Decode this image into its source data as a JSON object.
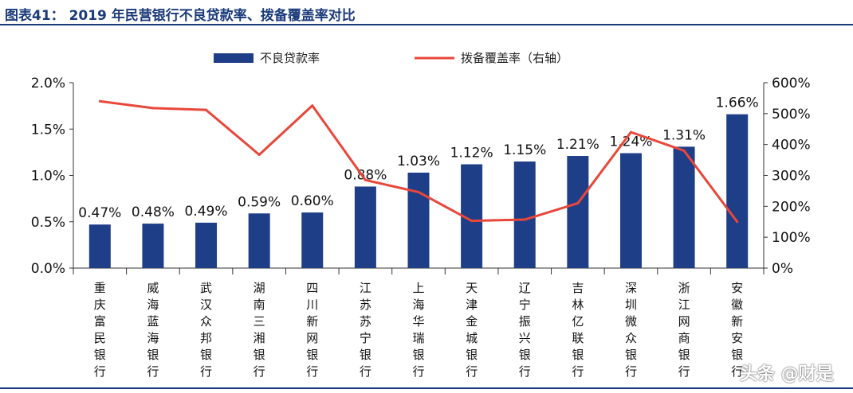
{
  "header": {
    "title": "图表41： 2019 年民营银行不良贷款率、拨备覆盖率对比"
  },
  "watermark": "头条 @财是",
  "colors": {
    "bar": "#1f3e88",
    "line": "#e8473a",
    "title": "#1a3a7a"
  },
  "chart_data": {
    "type": "bar+line",
    "categories": [
      "重庆富民银行",
      "威海蓝海银行",
      "武汉众邦银行",
      "湖南三湘银行",
      "四川新网银行",
      "江苏苏宁银行",
      "上海华瑞银行",
      "天津金城银行",
      "辽宁振兴银行",
      "吉林亿联银行",
      "深圳微众银行",
      "浙江网商银行",
      "安徽新安银行"
    ],
    "series": [
      {
        "name": "不良贷款率",
        "type": "bar",
        "axis": "left",
        "values": [
          0.47,
          0.48,
          0.49,
          0.59,
          0.6,
          0.88,
          1.03,
          1.12,
          1.15,
          1.21,
          1.24,
          1.31,
          1.66
        ],
        "labels": [
          "0.47%",
          "0.48%",
          "0.49%",
          "0.59%",
          "0.60%",
          "0.88%",
          "1.03%",
          "1.12%",
          "1.15%",
          "1.21%",
          "1.24%",
          "1.31%",
          "1.66%"
        ]
      },
      {
        "name": "拨备覆盖率（右轴）",
        "type": "line",
        "axis": "right",
        "values": [
          540,
          518,
          512,
          367,
          526,
          285,
          246,
          153,
          157,
          210,
          440,
          380,
          150
        ]
      }
    ],
    "y_left": {
      "min": 0,
      "max": 2.0,
      "ticks": [
        "0.0%",
        "0.5%",
        "1.0%",
        "1.5%",
        "2.0%"
      ]
    },
    "y_right": {
      "min": 0,
      "max": 600,
      "ticks": [
        "0%",
        "100%",
        "200%",
        "300%",
        "400%",
        "500%",
        "600%"
      ]
    },
    "legend": "top-center",
    "grid": false
  }
}
